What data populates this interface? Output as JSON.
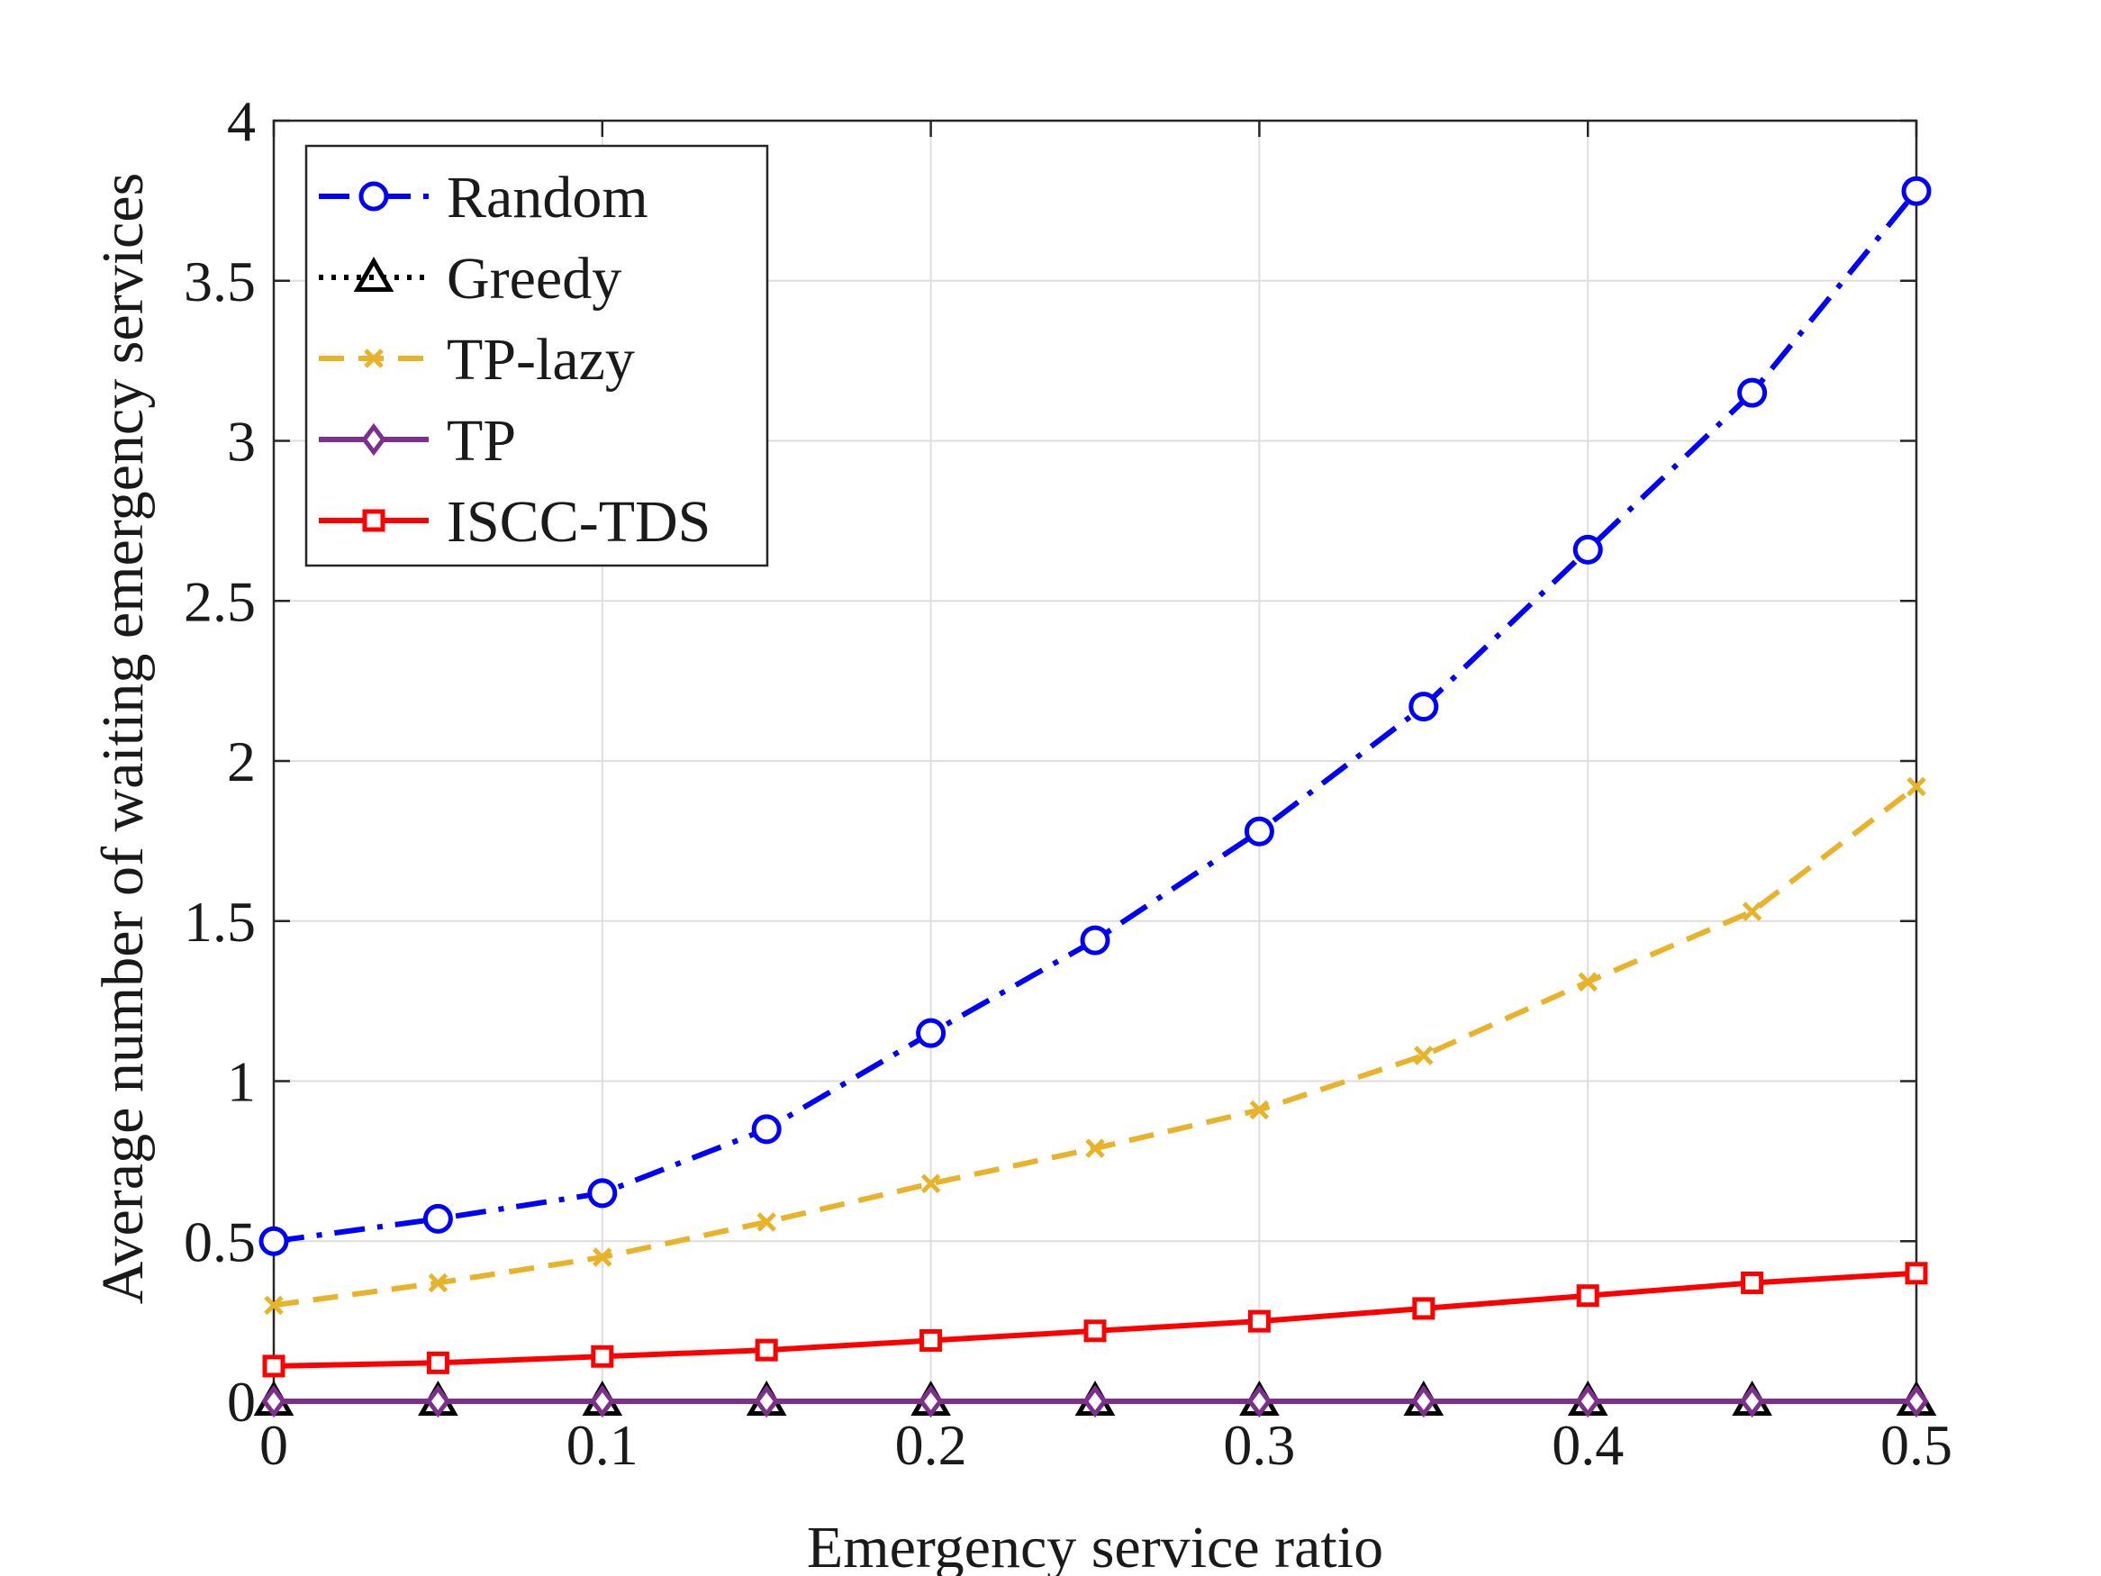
{
  "chart_data": {
    "type": "line",
    "xlabel": "Emergency service ratio",
    "ylabel": "Average number of waiting emergency services",
    "xlim": [
      0,
      0.5
    ],
    "ylim": [
      0,
      4
    ],
    "x_ticks": [
      0,
      0.1,
      0.2,
      0.3,
      0.4,
      0.5
    ],
    "x_tick_labels": [
      "0",
      "0.1",
      "0.2",
      "0.3",
      "0.4",
      "0.5"
    ],
    "y_ticks": [
      0,
      0.5,
      1,
      1.5,
      2,
      2.5,
      3,
      3.5,
      4
    ],
    "y_tick_labels": [
      "0",
      "0.5",
      "1",
      "1.5",
      "2",
      "2.5",
      "3",
      "3.5",
      "4"
    ],
    "grid": true,
    "legend_position": "top-left",
    "x": [
      0,
      0.05,
      0.1,
      0.15,
      0.2,
      0.25,
      0.3,
      0.35,
      0.4,
      0.45,
      0.5
    ],
    "series": [
      {
        "name": "Random",
        "color": "#0000ff",
        "line_style": "dash-dot",
        "marker": "circle",
        "values": [
          0.5,
          0.57,
          0.65,
          0.85,
          1.15,
          1.44,
          1.78,
          2.17,
          2.66,
          3.15,
          3.78
        ]
      },
      {
        "name": "Greedy",
        "color": "#000000",
        "line_style": "dotted",
        "marker": "triangle",
        "values": [
          0,
          0,
          0,
          0,
          0,
          0,
          0,
          0,
          0,
          0,
          0
        ]
      },
      {
        "name": "TP-lazy",
        "color": "#e8b32b",
        "line_style": "dashed",
        "marker": "x",
        "values": [
          0.3,
          0.37,
          0.45,
          0.56,
          0.68,
          0.79,
          0.91,
          1.08,
          1.31,
          1.53,
          1.92
        ]
      },
      {
        "name": "TP",
        "color": "#7e2f8e",
        "line_style": "solid",
        "marker": "diamond",
        "values": [
          0,
          0,
          0,
          0,
          0,
          0,
          0,
          0,
          0,
          0,
          0
        ]
      },
      {
        "name": "ISCC-TDS",
        "color": "#ff0000",
        "line_style": "solid",
        "marker": "square",
        "values": [
          0.11,
          0.12,
          0.14,
          0.16,
          0.19,
          0.22,
          0.25,
          0.29,
          0.33,
          0.37,
          0.4
        ]
      }
    ]
  }
}
